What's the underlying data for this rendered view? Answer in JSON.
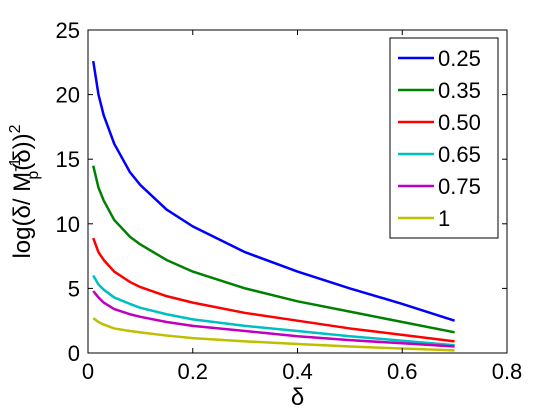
{
  "chart_data": {
    "type": "line",
    "xlabel": "δ",
    "ylabel": "log(δ/ M_p^{-1}(δ))^2",
    "xlim": [
      0,
      0.8
    ],
    "ylim": [
      0,
      25
    ],
    "xticks": [
      0,
      0.2,
      0.4,
      0.6,
      0.8
    ],
    "xtick_labels": [
      "0",
      "0.2",
      "0.4",
      "0.6",
      "0.8"
    ],
    "yticks": [
      0,
      5,
      10,
      15,
      20,
      25
    ],
    "ytick_labels": [
      "0",
      "5",
      "10",
      "15",
      "20",
      "25"
    ],
    "grid": false,
    "legend_position": "top-right",
    "x": [
      0.01,
      0.02,
      0.03,
      0.05,
      0.08,
      0.1,
      0.15,
      0.2,
      0.3,
      0.4,
      0.5,
      0.6,
      0.7
    ],
    "series": [
      {
        "name": "0.25",
        "color": "#0000ff",
        "values": [
          22.6,
          20.0,
          18.4,
          16.2,
          14.0,
          13.0,
          11.1,
          9.8,
          7.8,
          6.3,
          5.0,
          3.8,
          2.5
        ]
      },
      {
        "name": "0.35",
        "color": "#008000",
        "values": [
          14.5,
          12.8,
          11.8,
          10.3,
          9.0,
          8.4,
          7.2,
          6.3,
          5.0,
          4.0,
          3.2,
          2.4,
          1.6
        ]
      },
      {
        "name": "0.50",
        "color": "#ff0000",
        "values": [
          8.9,
          7.8,
          7.2,
          6.3,
          5.5,
          5.1,
          4.4,
          3.9,
          3.1,
          2.5,
          1.9,
          1.4,
          0.9
        ]
      },
      {
        "name": "0.65",
        "color": "#00bfbf",
        "values": [
          6.0,
          5.3,
          4.9,
          4.3,
          3.8,
          3.5,
          3.0,
          2.6,
          2.1,
          1.7,
          1.3,
          0.95,
          0.6
        ]
      },
      {
        "name": "0.75",
        "color": "#bf00bf",
        "values": [
          4.8,
          4.3,
          3.9,
          3.4,
          3.0,
          2.8,
          2.4,
          2.1,
          1.7,
          1.3,
          1.0,
          0.75,
          0.5
        ]
      },
      {
        "name": "1",
        "color": "#bfbf00",
        "values": [
          2.7,
          2.4,
          2.2,
          1.9,
          1.7,
          1.6,
          1.35,
          1.15,
          0.9,
          0.7,
          0.5,
          0.35,
          0.2
        ]
      }
    ]
  }
}
